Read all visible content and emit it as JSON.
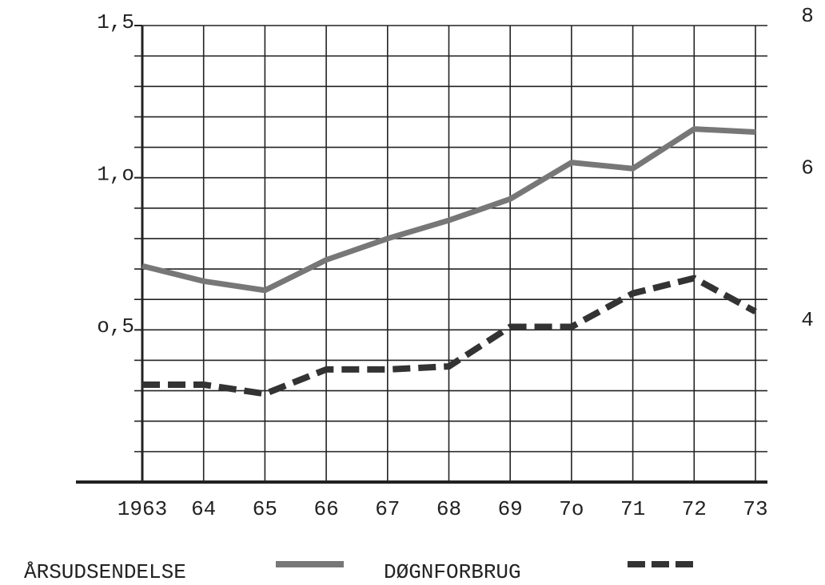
{
  "chart_data": {
    "type": "line",
    "categories": [
      "1963",
      "64",
      "65",
      "66",
      "67",
      "68",
      "69",
      "7o",
      "71",
      "72",
      "73"
    ],
    "series": [
      {
        "name": "ÅRSUDSENDELSE",
        "color": "#777777",
        "style": "solid",
        "values": [
          0.71,
          0.66,
          0.63,
          0.73,
          0.8,
          0.86,
          0.93,
          1.05,
          1.03,
          1.16,
          1.15
        ]
      },
      {
        "name": "DØGNFORBRUG",
        "color": "#333333",
        "style": "dashed",
        "values": [
          0.32,
          0.32,
          0.29,
          0.37,
          0.37,
          0.38,
          0.51,
          0.51,
          0.62,
          0.67,
          0.56
        ]
      }
    ],
    "ylim": [
      0,
      1.5
    ],
    "yticks": [
      {
        "value": 1.5,
        "label": "1,5"
      },
      {
        "value": 1,
        "label": "1,o"
      },
      {
        "value": 0.5,
        "label": "o,5"
      }
    ],
    "ygrid": [
      0.1,
      0.2,
      0.3,
      0.4,
      0.5,
      0.6,
      0.7,
      0.8,
      0.9,
      1,
      1.1,
      1.2,
      1.3,
      1.4,
      1.5
    ],
    "y2lim": [
      2,
      8
    ],
    "y2ticks": [
      8,
      6,
      4
    ],
    "grid": true
  }
}
